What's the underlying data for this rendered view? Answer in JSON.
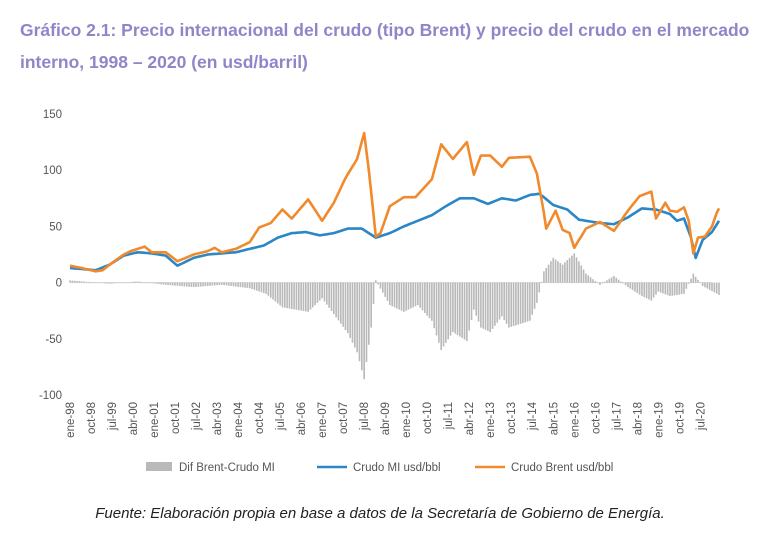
{
  "title": "Gráfico 2.1: Precio internacional del crudo (tipo Brent) y precio del crudo en el mercado interno, 1998 – 2020 (en usd/barril)",
  "footnote": "Fuente: Elaboración propia en base a datos de la Secretaría de Gobierno de Energía.",
  "colors": {
    "bar": "#b9b9b9",
    "mi": "#2b86c6",
    "brent": "#f08a2c",
    "title": "#8e86c9"
  },
  "chart_data": {
    "type": "line",
    "y_ticks": [
      "150",
      "100",
      "50",
      "0",
      "-50",
      "-100"
    ],
    "ylim": [
      -100,
      150
    ],
    "x_tick_labels": [
      "ene-98",
      "oct-98",
      "jul-99",
      "abr-00",
      "ene-01",
      "oct-01",
      "jul-02",
      "abr-03",
      "ene-04",
      "oct-04",
      "jul-05",
      "abr-06",
      "ene-07",
      "oct-07",
      "jul-08",
      "abr-09",
      "ene-10",
      "oct-10",
      "jul-11",
      "abr-12",
      "ene-13",
      "oct-13",
      "jul-14",
      "abr-15",
      "ene-16",
      "oct-16",
      "jul-17",
      "abr-18",
      "ene-19",
      "oct-19",
      "jul-20"
    ],
    "x_start": "1998-01",
    "x_end": "2020-12",
    "legend": [
      "Dif Brent-Crudo MI",
      "Crudo MI usd/bbl",
      "Crudo Brent usd/bbl"
    ],
    "legend_position": "bottom",
    "series": [
      {
        "name": "Crudo Brent usd/bbl",
        "kind": "line",
        "points": [
          [
            "1998-01",
            15
          ],
          [
            "1998-06",
            13
          ],
          [
            "1998-12",
            10
          ],
          [
            "1999-03",
            11
          ],
          [
            "1999-06",
            16
          ],
          [
            "1999-12",
            25
          ],
          [
            "2000-03",
            28
          ],
          [
            "2000-09",
            32
          ],
          [
            "2000-12",
            27
          ],
          [
            "2001-06",
            27
          ],
          [
            "2001-11",
            19
          ],
          [
            "2002-06",
            25
          ],
          [
            "2002-12",
            28
          ],
          [
            "2003-03",
            31
          ],
          [
            "2003-06",
            27
          ],
          [
            "2003-12",
            30
          ],
          [
            "2004-06",
            36
          ],
          [
            "2004-10",
            49
          ],
          [
            "2005-03",
            53
          ],
          [
            "2005-08",
            65
          ],
          [
            "2005-12",
            57
          ],
          [
            "2006-07",
            74
          ],
          [
            "2007-01",
            55
          ],
          [
            "2007-06",
            71
          ],
          [
            "2007-11",
            93
          ],
          [
            "2008-04",
            110
          ],
          [
            "2008-07",
            133
          ],
          [
            "2008-09",
            100
          ],
          [
            "2008-12",
            41
          ],
          [
            "2009-02",
            44
          ],
          [
            "2009-06",
            68
          ],
          [
            "2009-12",
            76
          ],
          [
            "2010-05",
            76
          ],
          [
            "2010-12",
            92
          ],
          [
            "2011-04",
            123
          ],
          [
            "2011-09",
            110
          ],
          [
            "2012-03",
            125
          ],
          [
            "2012-06",
            96
          ],
          [
            "2012-09",
            113
          ],
          [
            "2013-01",
            113
          ],
          [
            "2013-06",
            103
          ],
          [
            "2013-09",
            111
          ],
          [
            "2014-06",
            112
          ],
          [
            "2014-09",
            97
          ],
          [
            "2014-12",
            62
          ],
          [
            "2015-01",
            48
          ],
          [
            "2015-05",
            64
          ],
          [
            "2015-08",
            47
          ],
          [
            "2015-11",
            44
          ],
          [
            "2016-01",
            31
          ],
          [
            "2016-06",
            48
          ],
          [
            "2016-12",
            54
          ],
          [
            "2017-06",
            46
          ],
          [
            "2017-12",
            64
          ],
          [
            "2018-05",
            77
          ],
          [
            "2018-10",
            81
          ],
          [
            "2018-12",
            57
          ],
          [
            "2019-04",
            71
          ],
          [
            "2019-06",
            64
          ],
          [
            "2019-09",
            63
          ],
          [
            "2019-12",
            67
          ],
          [
            "2020-02",
            55
          ],
          [
            "2020-04",
            26
          ],
          [
            "2020-06",
            40
          ],
          [
            "2020-09",
            41
          ],
          [
            "2020-12",
            50
          ],
          [
            "2021-02",
            62
          ],
          [
            "2021-03",
            66
          ]
        ]
      },
      {
        "name": "Crudo MI usd/bbl",
        "kind": "line",
        "points": [
          [
            "1998-01",
            13
          ],
          [
            "1998-12",
            11
          ],
          [
            "1999-06",
            16
          ],
          [
            "1999-12",
            24
          ],
          [
            "2000-06",
            27
          ],
          [
            "2000-12",
            26
          ],
          [
            "2001-06",
            24
          ],
          [
            "2001-11",
            15
          ],
          [
            "2002-06",
            22
          ],
          [
            "2002-12",
            25
          ],
          [
            "2003-06",
            26
          ],
          [
            "2003-12",
            27
          ],
          [
            "2004-06",
            30
          ],
          [
            "2004-12",
            33
          ],
          [
            "2005-06",
            40
          ],
          [
            "2005-12",
            44
          ],
          [
            "2006-06",
            45
          ],
          [
            "2006-12",
            42
          ],
          [
            "2007-06",
            44
          ],
          [
            "2007-12",
            48
          ],
          [
            "2008-06",
            48
          ],
          [
            "2008-12",
            40
          ],
          [
            "2009-06",
            44
          ],
          [
            "2009-12",
            50
          ],
          [
            "2010-06",
            55
          ],
          [
            "2010-12",
            60
          ],
          [
            "2011-06",
            68
          ],
          [
            "2011-12",
            75
          ],
          [
            "2012-06",
            75
          ],
          [
            "2012-12",
            70
          ],
          [
            "2013-06",
            75
          ],
          [
            "2013-12",
            73
          ],
          [
            "2014-06",
            78
          ],
          [
            "2014-10",
            79
          ],
          [
            "2014-12",
            76
          ],
          [
            "2015-04",
            69
          ],
          [
            "2015-10",
            65
          ],
          [
            "2016-03",
            56
          ],
          [
            "2016-12",
            53
          ],
          [
            "2017-06",
            52
          ],
          [
            "2017-12",
            58
          ],
          [
            "2018-06",
            66
          ],
          [
            "2018-12",
            65
          ],
          [
            "2019-06",
            61
          ],
          [
            "2019-09",
            55
          ],
          [
            "2019-12",
            57
          ],
          [
            "2020-03",
            40
          ],
          [
            "2020-05",
            22
          ],
          [
            "2020-08",
            38
          ],
          [
            "2020-12",
            45
          ],
          [
            "2021-03",
            55
          ]
        ]
      },
      {
        "name": "Dif Brent-Crudo MI",
        "kind": "bar",
        "points": [
          [
            "1998-01",
            2
          ],
          [
            "1999-06",
            -1
          ],
          [
            "2000-06",
            1
          ],
          [
            "2001-06",
            -2
          ],
          [
            "2002-06",
            -4
          ],
          [
            "2003-06",
            -2
          ],
          [
            "2004-06",
            -5
          ],
          [
            "2005-01",
            -10
          ],
          [
            "2005-08",
            -22
          ],
          [
            "2006-07",
            -26
          ],
          [
            "2007-01",
            -14
          ],
          [
            "2007-06",
            -28
          ],
          [
            "2007-12",
            -45
          ],
          [
            "2008-04",
            -62
          ],
          [
            "2008-07",
            -86
          ],
          [
            "2008-10",
            -40
          ],
          [
            "2008-12",
            2
          ],
          [
            "2009-06",
            -20
          ],
          [
            "2009-12",
            -26
          ],
          [
            "2010-06",
            -20
          ],
          [
            "2010-12",
            -34
          ],
          [
            "2011-04",
            -60
          ],
          [
            "2011-09",
            -44
          ],
          [
            "2012-03",
            -52
          ],
          [
            "2012-06",
            -24
          ],
          [
            "2012-09",
            -40
          ],
          [
            "2013-01",
            -44
          ],
          [
            "2013-06",
            -30
          ],
          [
            "2013-09",
            -40
          ],
          [
            "2014-06",
            -34
          ],
          [
            "2014-09",
            -18
          ],
          [
            "2014-12",
            10
          ],
          [
            "2015-04",
            22
          ],
          [
            "2015-08",
            16
          ],
          [
            "2016-01",
            26
          ],
          [
            "2016-06",
            8
          ],
          [
            "2016-12",
            -2
          ],
          [
            "2017-06",
            6
          ],
          [
            "2017-12",
            -4
          ],
          [
            "2018-06",
            -12
          ],
          [
            "2018-10",
            -16
          ],
          [
            "2019-01",
            -8
          ],
          [
            "2019-06",
            -12
          ],
          [
            "2019-12",
            -10
          ],
          [
            "2020-04",
            8
          ],
          [
            "2020-08",
            -3
          ],
          [
            "2021-03",
            -11
          ]
        ]
      }
    ]
  }
}
